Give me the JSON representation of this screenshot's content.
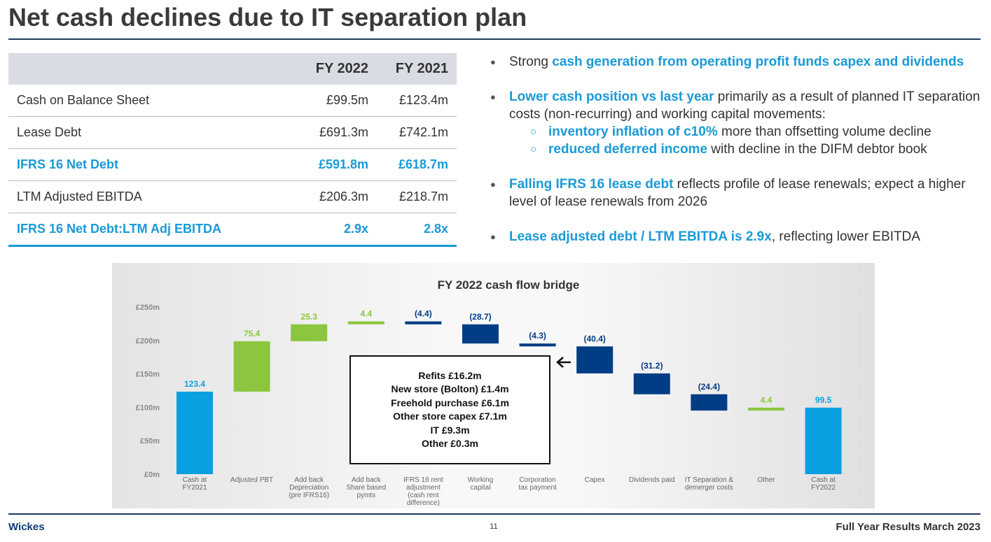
{
  "header": {
    "title": "Net cash declines due to IT separation plan"
  },
  "table": {
    "header": [
      "FY 2022",
      "FY 2021"
    ],
    "rows": [
      [
        "Cash on Balance Sheet",
        "£99.5m",
        "£123.4m"
      ],
      [
        "Lease Debt",
        "£691.3m",
        "£742.1m"
      ],
      [
        "IFRS 16 Net Debt",
        "£591.8m",
        "£618.7m"
      ],
      [
        "LTM Adjusted EBITDA",
        "£206.3m",
        "£218.7m"
      ],
      [
        "IFRS 16 Net Debt:LTM Adj EBITDA",
        "2.9x",
        "2.8x"
      ]
    ],
    "highlight": [
      false,
      false,
      true,
      false,
      true
    ]
  },
  "bullets": [
    {
      "segments": [
        {
          "text": "Strong ",
          "bold": false
        },
        {
          "text": "cash generation from operating profit funds capex and dividends",
          "bold": true
        }
      ]
    },
    {
      "segments": [
        {
          "text": "Lower cash position vs last year",
          "bold": true
        },
        {
          "text": " primarily as a result of planned IT separation costs (non-recurring) and working capital movements:",
          "bold": false
        }
      ],
      "sub": [
        {
          "segments": [
            {
              "text": "inventory inflation of c10%",
              "bold": true
            },
            {
              "text": " more than offsetting volume decline",
              "bold": false
            }
          ]
        },
        {
          "segments": [
            {
              "text": "reduced deferred income",
              "bold": true
            },
            {
              "text": " with decline in the DIFM debtor book",
              "bold": false
            }
          ]
        }
      ]
    },
    {
      "segments": [
        {
          "text": "Falling IFRS 16 lease debt",
          "bold": true
        },
        {
          "text": " reflects profile of lease renewals; expect a higher level of lease renewals from 2026",
          "bold": false
        }
      ]
    },
    {
      "segments": [
        {
          "text": "Lease adjusted debt / LTM EBITDA is 2.9x",
          "bold": true
        },
        {
          "text": ", reflecting lower EBITDA",
          "bold": false
        }
      ]
    }
  ],
  "chart_data": {
    "type": "waterfall",
    "title": "FY 2022 cash flow bridge",
    "categories": [
      "Cash at\nFY2021",
      "Adjusted PBT",
      "Add back\nDepreciation\n(pre IFRS16)",
      "Add back\nShare based\npymts",
      "IFRS 16 rent\nadjustment\n(cash rent\ndifference)",
      "Working\ncapital",
      "Corporation\ntax payment",
      "Capex",
      "Dividends paid",
      "IT Separation &\ndemerger costs",
      "Other",
      "Cash at\nFY2022"
    ],
    "values": [
      123.4,
      75.4,
      25.3,
      4.4,
      -4.4,
      -28.7,
      -4.3,
      -40.4,
      -31.2,
      -24.4,
      4.4,
      99.5
    ],
    "value_labels": [
      "123.4",
      "75.4",
      "25.3",
      "4.4",
      "(4.4)",
      "(28.7)",
      "(4.3)",
      "(40.4)",
      "(31.2)",
      "(24.4)",
      "4.4",
      "99.5"
    ],
    "measure": [
      "absolute",
      "relative",
      "relative",
      "relative",
      "relative",
      "relative",
      "relative",
      "relative",
      "relative",
      "relative",
      "relative",
      "absolute"
    ],
    "colors": {
      "absolute": "#0a9fe0",
      "increase": "#8cc63f",
      "decrease": "#003d85"
    },
    "ylim": [
      0,
      250
    ],
    "yticks": [
      {
        "value": 0,
        "label": "£0m"
      },
      {
        "value": 50,
        "label": "£50m"
      },
      {
        "value": 100,
        "label": "£100m"
      },
      {
        "value": 150,
        "label": "£150m"
      },
      {
        "value": 200,
        "label": "£200m"
      },
      {
        "value": 250,
        "label": "£250m"
      }
    ],
    "annotation": [
      "Refits £16.2m",
      "New store (Bolton) £1.4m",
      "Freehold purchase £6.1m",
      "Other store capex £7.1m",
      "IT £9.3m",
      "Other £0.3m"
    ]
  },
  "footer": {
    "left": "Wickes",
    "page": "11",
    "right": "Full Year Results March 2023"
  }
}
